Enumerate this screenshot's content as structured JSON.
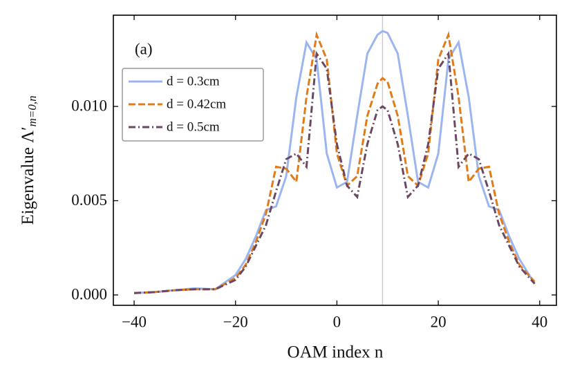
{
  "chart_data": {
    "type": "line",
    "xlabel": "OAM index n",
    "ylabel": "Eigenvalue Λ′",
    "ylabel_subscript": "m=0,n",
    "annotation": "(a)",
    "x": [
      -40,
      -36,
      -32,
      -28,
      -24,
      -20,
      -18,
      -16,
      -14,
      -12,
      -10,
      -8,
      -6,
      -4,
      -2,
      0,
      2,
      4,
      6,
      8,
      9,
      10,
      12,
      14,
      16,
      18,
      20,
      22,
      24,
      26,
      28,
      30,
      32,
      34,
      36,
      39
    ],
    "series": [
      {
        "name": "d = 0.3cm",
        "color": "#9bb5f0",
        "linestyle": "solid",
        "values": [
          0.0001,
          0.00015,
          0.00025,
          0.00035,
          0.0003,
          0.00106,
          0.0019,
          0.0031,
          0.0045,
          0.0047,
          0.0063,
          0.0105,
          0.0134,
          0.0125,
          0.0075,
          0.0057,
          0.006,
          0.0095,
          0.0128,
          0.0138,
          0.014,
          0.0139,
          0.0128,
          0.0095,
          0.006,
          0.0057,
          0.0075,
          0.0125,
          0.0134,
          0.0105,
          0.0063,
          0.0047,
          0.0045,
          0.0031,
          0.0019,
          0.0006
        ]
      },
      {
        "name": "d = 0.42cm",
        "color": "#e07b1a",
        "linestyle": "dashed",
        "values": [
          0.0001,
          0.00015,
          0.00025,
          0.0003,
          0.0003,
          0.0009,
          0.0016,
          0.0028,
          0.0043,
          0.0068,
          0.0067,
          0.006,
          0.0105,
          0.0138,
          0.0125,
          0.0075,
          0.0058,
          0.0063,
          0.0095,
          0.0112,
          0.0115,
          0.0113,
          0.0095,
          0.0063,
          0.0058,
          0.0075,
          0.0125,
          0.0138,
          0.0105,
          0.006,
          0.0067,
          0.0068,
          0.0043,
          0.0028,
          0.0016,
          0.0007
        ]
      },
      {
        "name": "d = 0.5cm",
        "color": "#6b4862",
        "linestyle": "dashdot",
        "values": [
          0.0001,
          0.00015,
          0.00025,
          0.0003,
          0.0003,
          0.0008,
          0.0015,
          0.0026,
          0.0037,
          0.0055,
          0.0072,
          0.0075,
          0.0068,
          0.0128,
          0.012,
          0.008,
          0.0058,
          0.0052,
          0.008,
          0.0098,
          0.01,
          0.0098,
          0.008,
          0.0052,
          0.0058,
          0.008,
          0.012,
          0.0128,
          0.0068,
          0.0075,
          0.0072,
          0.0055,
          0.0037,
          0.0026,
          0.0015,
          0.0006
        ]
      }
    ],
    "vline": 9,
    "vline_color": "#cccccc",
    "xlim": [
      -44.1,
      43.3
    ],
    "ylim": [
      -0.00055,
      0.01484
    ],
    "xticks": [
      {
        "value": -40,
        "label": "−40"
      },
      {
        "value": -20,
        "label": "−20"
      },
      0,
      20,
      40
    ],
    "yticks": [
      {
        "value": 0,
        "label": "0.000"
      },
      {
        "value": 0.005,
        "label": "0.005"
      },
      {
        "value": 0.01,
        "label": "0.010"
      }
    ],
    "legend": "upper left",
    "grid": false
  }
}
